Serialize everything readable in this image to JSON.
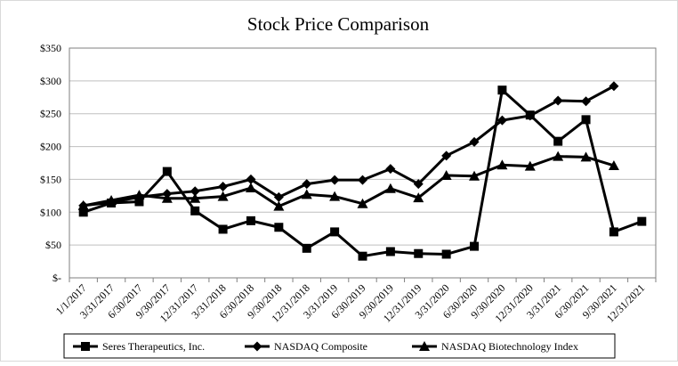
{
  "chart_data": {
    "type": "line",
    "title": "Stock Price Comparison",
    "xlabel": "",
    "ylabel": "",
    "ylim": [
      0,
      350
    ],
    "y_ticks": [
      0,
      50,
      100,
      150,
      200,
      250,
      300,
      350
    ],
    "y_tick_labels": [
      "$-",
      "$50",
      "$100",
      "$150",
      "$200",
      "$250",
      "$300",
      "$350"
    ],
    "grid": true,
    "legend_position": "bottom",
    "categories": [
      "1/1/2017",
      "3/31/2017",
      "6/30/2017",
      "9/30/2017",
      "12/31/2017",
      "3/31/2018",
      "6/30/2018",
      "9/30/2018",
      "12/31/2018",
      "3/31/2019",
      "6/30/2019",
      "9/30/2019",
      "12/31/2019",
      "3/31/2020",
      "6/30/2020",
      "9/30/2020",
      "12/31/2020",
      "3/31/2021",
      "6/30/2021",
      "9/30/2021",
      "12/31/2021"
    ],
    "series": [
      {
        "name": "Seres Therapeutics, Inc.",
        "marker": "square",
        "values": [
          100,
          114,
          116,
          162,
          102,
          74,
          87,
          77,
          45,
          70,
          33,
          40,
          37,
          36,
          48,
          286,
          248,
          208,
          241,
          70,
          null
        ]
      },
      {
        "name": "NASDAQ Composite",
        "marker": "diamond",
        "values": [
          110,
          115,
          123,
          128,
          132,
          139,
          150,
          123,
          143,
          149,
          149,
          166,
          143,
          186,
          207,
          240,
          247,
          270,
          269,
          292,
          null
        ]
      },
      {
        "name": "NASDAQ Biotechnology Index",
        "marker": "triangle",
        "values": [
          110,
          118,
          126,
          121,
          121,
          124,
          137,
          109,
          127,
          124,
          113,
          136,
          122,
          156,
          155,
          172,
          170,
          185,
          184,
          171,
          null
        ]
      }
    ],
    "trailing_points": [
      {
        "series": "Seres Therapeutics, Inc.",
        "x": "12/31/2021",
        "value": 86,
        "connected_from": "9/30/2021"
      }
    ],
    "colors": {
      "line": "#000000",
      "grid": "#bfbfbf",
      "border": "#7f7f7f"
    }
  }
}
